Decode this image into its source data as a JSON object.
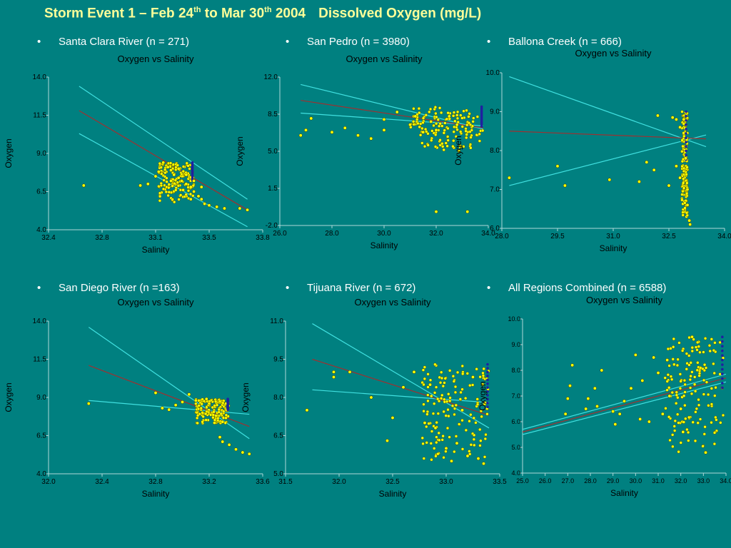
{
  "slide": {
    "title_pre": "Storm Event 1 – Feb 24",
    "title_sup1": "th",
    "title_mid": " to Mar 30",
    "title_sup2": "th",
    "title_post1": " 2004",
    "title_post2": "Dissolved Oxygen (mg/L)"
  },
  "colors": {
    "background": "#008080",
    "title": "#ffff99",
    "points": "#ffff00",
    "regression": "#a03030",
    "confidence": "#40e0e0",
    "dense_points": "#2020a0"
  },
  "bullets": [
    "Santa Clara River (n = 271)",
    "San Pedro (n = 3980)",
    "Ballona Creek (n = 666)",
    "San Diego River (n =163)",
    "Tijuana River (n = 672)",
    "All Regions Combined (n = 6588)"
  ],
  "chart_data": [
    {
      "type": "scatter",
      "title": "Oxygen vs Salinity",
      "xlabel": "Salinity",
      "ylabel": "Oxygen",
      "xlim": [
        32.4,
        33.8
      ],
      "ylim": [
        4.0,
        14.0
      ],
      "xticks": [
        "32.4",
        "32.8",
        "33.1",
        "33.5",
        "33.8"
      ],
      "yticks": [
        "4.0",
        "6.5",
        "9.0",
        "11.5",
        "14.0"
      ],
      "regression": [
        [
          32.6,
          11.8
        ],
        [
          33.7,
          5.3
        ]
      ],
      "ci_upper": [
        [
          32.6,
          13.4
        ],
        [
          33.7,
          6.0
        ]
      ],
      "ci_lower": [
        [
          32.6,
          10.3
        ],
        [
          33.7,
          4.2
        ]
      ],
      "points": [
        [
          32.63,
          6.9
        ],
        [
          33.15,
          8.4
        ],
        [
          33.18,
          8.1
        ],
        [
          33.2,
          7.9
        ],
        [
          33.22,
          7.6
        ],
        [
          33.25,
          7.4
        ],
        [
          33.27,
          7.2
        ],
        [
          33.3,
          7.0
        ],
        [
          33.33,
          6.8
        ],
        [
          33.35,
          6.5
        ],
        [
          33.38,
          6.2
        ],
        [
          33.4,
          6.0
        ],
        [
          33.42,
          5.7
        ],
        [
          33.45,
          5.6
        ],
        [
          33.5,
          5.5
        ],
        [
          33.55,
          5.4
        ],
        [
          33.65,
          5.4
        ],
        [
          33.7,
          5.3
        ],
        [
          33.05,
          7.0
        ],
        [
          33.1,
          7.5
        ],
        [
          33.0,
          6.9
        ],
        [
          33.3,
          7.6
        ],
        [
          33.35,
          7.2
        ],
        [
          33.4,
          6.8
        ],
        [
          33.28,
          6.6
        ],
        [
          33.33,
          6.0
        ],
        [
          33.2,
          7.2
        ],
        [
          33.25,
          8.0
        ],
        [
          33.12,
          7.8
        ]
      ],
      "dense_x_range": [
        33.12,
        33.35
      ],
      "dense_y_range": [
        5.8,
        8.4
      ]
    },
    {
      "type": "scatter",
      "title": "Oxygen vs Salinity",
      "xlabel": "Salinity",
      "ylabel": "Oxygen",
      "xlim": [
        26.0,
        34.0
      ],
      "ylim": [
        -2.0,
        12.0
      ],
      "xticks": [
        "26.0",
        "28.0",
        "30.0",
        "32.0",
        "34.0"
      ],
      "yticks": [
        "-2.0",
        "1.5",
        "5.0",
        "8.5",
        "12.0"
      ],
      "regression": [
        [
          26.8,
          9.8
        ],
        [
          33.8,
          7.2
        ]
      ],
      "ci_upper": [
        [
          26.8,
          11.3
        ],
        [
          33.8,
          7.1
        ]
      ],
      "ci_lower": [
        [
          26.8,
          8.6
        ],
        [
          33.8,
          7.4
        ]
      ],
      "points": [
        [
          26.8,
          6.5
        ],
        [
          27.0,
          7.0
        ],
        [
          27.2,
          8.1
        ],
        [
          28.0,
          6.8
        ],
        [
          28.5,
          7.2
        ],
        [
          29.0,
          6.5
        ],
        [
          29.5,
          6.2
        ],
        [
          30.0,
          8.0
        ],
        [
          30.0,
          7.0
        ],
        [
          30.5,
          8.7
        ],
        [
          31.0,
          7.5
        ],
        [
          31.2,
          8.3
        ],
        [
          31.5,
          6.8
        ],
        [
          32.0,
          7.0
        ],
        [
          32.0,
          -0.7
        ],
        [
          33.2,
          -0.7
        ],
        [
          31.8,
          7.8
        ],
        [
          32.5,
          8.3
        ],
        [
          32.8,
          7.5
        ]
      ],
      "dense_x_range": [
        31.0,
        33.8
      ],
      "dense_y_range": [
        5.0,
        9.2
      ]
    },
    {
      "type": "scatter",
      "title": "Oxygen vs Salinity",
      "xlabel": "Salinity",
      "ylabel": "Oxygen",
      "xlim": [
        28.0,
        34.0
      ],
      "ylim": [
        6.0,
        10.0
      ],
      "xticks": [
        "28.0",
        "29.5",
        "31.0",
        "32.5",
        "34.0"
      ],
      "yticks": [
        "6.0",
        "7.0",
        "8.0",
        "9.0",
        "10.0"
      ],
      "regression": [
        [
          28.2,
          8.5
        ],
        [
          33.5,
          8.3
        ]
      ],
      "ci_upper": [
        [
          28.2,
          9.9
        ],
        [
          33.5,
          8.1
        ]
      ],
      "ci_lower": [
        [
          28.2,
          7.1
        ],
        [
          33.5,
          8.4
        ]
      ],
      "points": [
        [
          28.2,
          7.3
        ],
        [
          29.5,
          7.6
        ],
        [
          29.7,
          7.1
        ],
        [
          30.9,
          7.25
        ],
        [
          31.7,
          7.2
        ],
        [
          31.9,
          7.7
        ],
        [
          32.1,
          7.5
        ],
        [
          32.2,
          8.9
        ],
        [
          32.5,
          7.1
        ],
        [
          32.7,
          7.6
        ],
        [
          32.8,
          7.3
        ],
        [
          33.0,
          6.6
        ],
        [
          33.05,
          6.2
        ],
        [
          33.07,
          6.1
        ],
        [
          32.6,
          8.85
        ],
        [
          32.7,
          8.8
        ],
        [
          32.8,
          8.6
        ],
        [
          32.9,
          8.8
        ],
        [
          33.0,
          7.0
        ],
        [
          32.95,
          7.8
        ]
      ],
      "dense_x_range": [
        32.85,
        33.0
      ],
      "dense_y_range": [
        6.2,
        9.0
      ]
    },
    {
      "type": "scatter",
      "title": "Oxygen vs Salinity",
      "xlabel": "Salinity",
      "ylabel": "Oxygen",
      "xlim": [
        32.0,
        33.6
      ],
      "ylim": [
        4.0,
        14.0
      ],
      "xticks": [
        "32.0",
        "32.4",
        "32.8",
        "33.2",
        "33.6"
      ],
      "yticks": [
        "4.0",
        "6.5",
        "9.0",
        "11.5",
        "14.0"
      ],
      "regression": [
        [
          32.3,
          11.1
        ],
        [
          33.5,
          7.1
        ]
      ],
      "ci_upper": [
        [
          32.3,
          13.6
        ],
        [
          33.5,
          6.3
        ]
      ],
      "ci_lower": [
        [
          32.3,
          8.8
        ],
        [
          33.5,
          7.9
        ]
      ],
      "points": [
        [
          32.3,
          8.6
        ],
        [
          32.8,
          9.3
        ],
        [
          32.85,
          8.3
        ],
        [
          32.9,
          8.2
        ],
        [
          33.0,
          8.7
        ],
        [
          33.05,
          9.2
        ],
        [
          33.1,
          8.8
        ],
        [
          33.15,
          8.0
        ],
        [
          33.2,
          8.6
        ],
        [
          33.25,
          7.8
        ],
        [
          33.3,
          6.1
        ],
        [
          33.35,
          5.9
        ],
        [
          33.4,
          5.6
        ],
        [
          33.45,
          5.4
        ],
        [
          33.5,
          5.3
        ],
        [
          33.3,
          7.4
        ],
        [
          33.28,
          6.4
        ],
        [
          33.18,
          8.9
        ],
        [
          32.95,
          8.5
        ]
      ],
      "dense_x_range": [
        33.1,
        33.35
      ],
      "dense_y_range": [
        7.3,
        8.9
      ]
    },
    {
      "type": "scatter",
      "title": "Oxygen vs Salinity",
      "xlabel": "Salinity",
      "ylabel": "Oxygen",
      "xlim": [
        31.5,
        33.5
      ],
      "ylim": [
        5.0,
        11.0
      ],
      "xticks": [
        "31.5",
        "32.0",
        "32.5",
        "33.0",
        "33.5"
      ],
      "yticks": [
        "5.0",
        "6.5",
        "8.0",
        "9.5",
        "11.0"
      ],
      "regression": [
        [
          31.75,
          9.5
        ],
        [
          33.4,
          7.3
        ]
      ],
      "ci_upper": [
        [
          31.75,
          10.9
        ],
        [
          33.4,
          6.8
        ]
      ],
      "ci_lower": [
        [
          31.75,
          8.3
        ],
        [
          33.4,
          7.8
        ]
      ],
      "points": [
        [
          31.7,
          7.5
        ],
        [
          31.95,
          9.0
        ],
        [
          31.95,
          8.8
        ],
        [
          32.1,
          9.0
        ],
        [
          32.3,
          8.0
        ],
        [
          32.45,
          6.3
        ],
        [
          32.5,
          7.2
        ],
        [
          32.6,
          8.4
        ],
        [
          32.8,
          7.0
        ],
        [
          32.9,
          6.8
        ],
        [
          33.0,
          6.0
        ],
        [
          33.05,
          5.5
        ],
        [
          33.1,
          6.2
        ],
        [
          33.2,
          5.7
        ],
        [
          33.3,
          5.6
        ],
        [
          33.35,
          5.4
        ],
        [
          32.7,
          9.0
        ],
        [
          32.85,
          8.5
        ],
        [
          33.15,
          7.5
        ],
        [
          33.25,
          8.8
        ]
      ],
      "dense_x_range": [
        32.75,
        33.4
      ],
      "dense_y_range": [
        5.5,
        9.3
      ]
    },
    {
      "type": "scatter",
      "title": "Oxygen vs Salinity",
      "xlabel": "Salinity",
      "ylabel": "Oxygen",
      "xlim": [
        25.0,
        34.0
      ],
      "ylim": [
        4.0,
        10.0
      ],
      "xticks": [
        "25.0",
        "26.0",
        "27.0",
        "28.0",
        "29.0",
        "30.0",
        "31.0",
        "32.0",
        "33.0",
        "34.0"
      ],
      "yticks": [
        "4.0",
        "5.0",
        "6.0",
        "7.0",
        "8.0",
        "9.0",
        "10.0"
      ],
      "regression": [
        [
          25.0,
          5.6
        ],
        [
          34.0,
          7.7
        ]
      ],
      "ci_upper": [
        [
          25.0,
          5.7
        ],
        [
          34.0,
          7.85
        ]
      ],
      "ci_lower": [
        [
          25.0,
          5.5
        ],
        [
          34.0,
          7.55
        ]
      ],
      "points": [
        [
          26.9,
          6.3
        ],
        [
          27.0,
          6.9
        ],
        [
          27.1,
          7.4
        ],
        [
          27.2,
          8.2
        ],
        [
          27.8,
          6.5
        ],
        [
          27.9,
          6.9
        ],
        [
          28.2,
          7.3
        ],
        [
          28.3,
          6.6
        ],
        [
          28.5,
          8.0
        ],
        [
          29.0,
          6.4
        ],
        [
          29.1,
          5.9
        ],
        [
          29.3,
          6.3
        ],
        [
          29.5,
          6.8
        ],
        [
          29.8,
          7.3
        ],
        [
          30.0,
          8.6
        ],
        [
          30.2,
          6.1
        ],
        [
          30.3,
          7.6
        ],
        [
          30.6,
          6.0
        ],
        [
          30.8,
          8.5
        ],
        [
          31.0,
          7.9
        ],
        [
          31.2,
          6.3
        ],
        [
          31.4,
          8.4
        ],
        [
          31.5,
          7.0
        ],
        [
          32.0,
          6.5
        ],
        [
          32.1,
          5.6
        ],
        [
          32.5,
          9.3
        ],
        [
          33.1,
          4.8
        ]
      ],
      "dense_x_range": [
        31.3,
        33.9
      ],
      "dense_y_range": [
        4.8,
        9.3
      ]
    }
  ]
}
